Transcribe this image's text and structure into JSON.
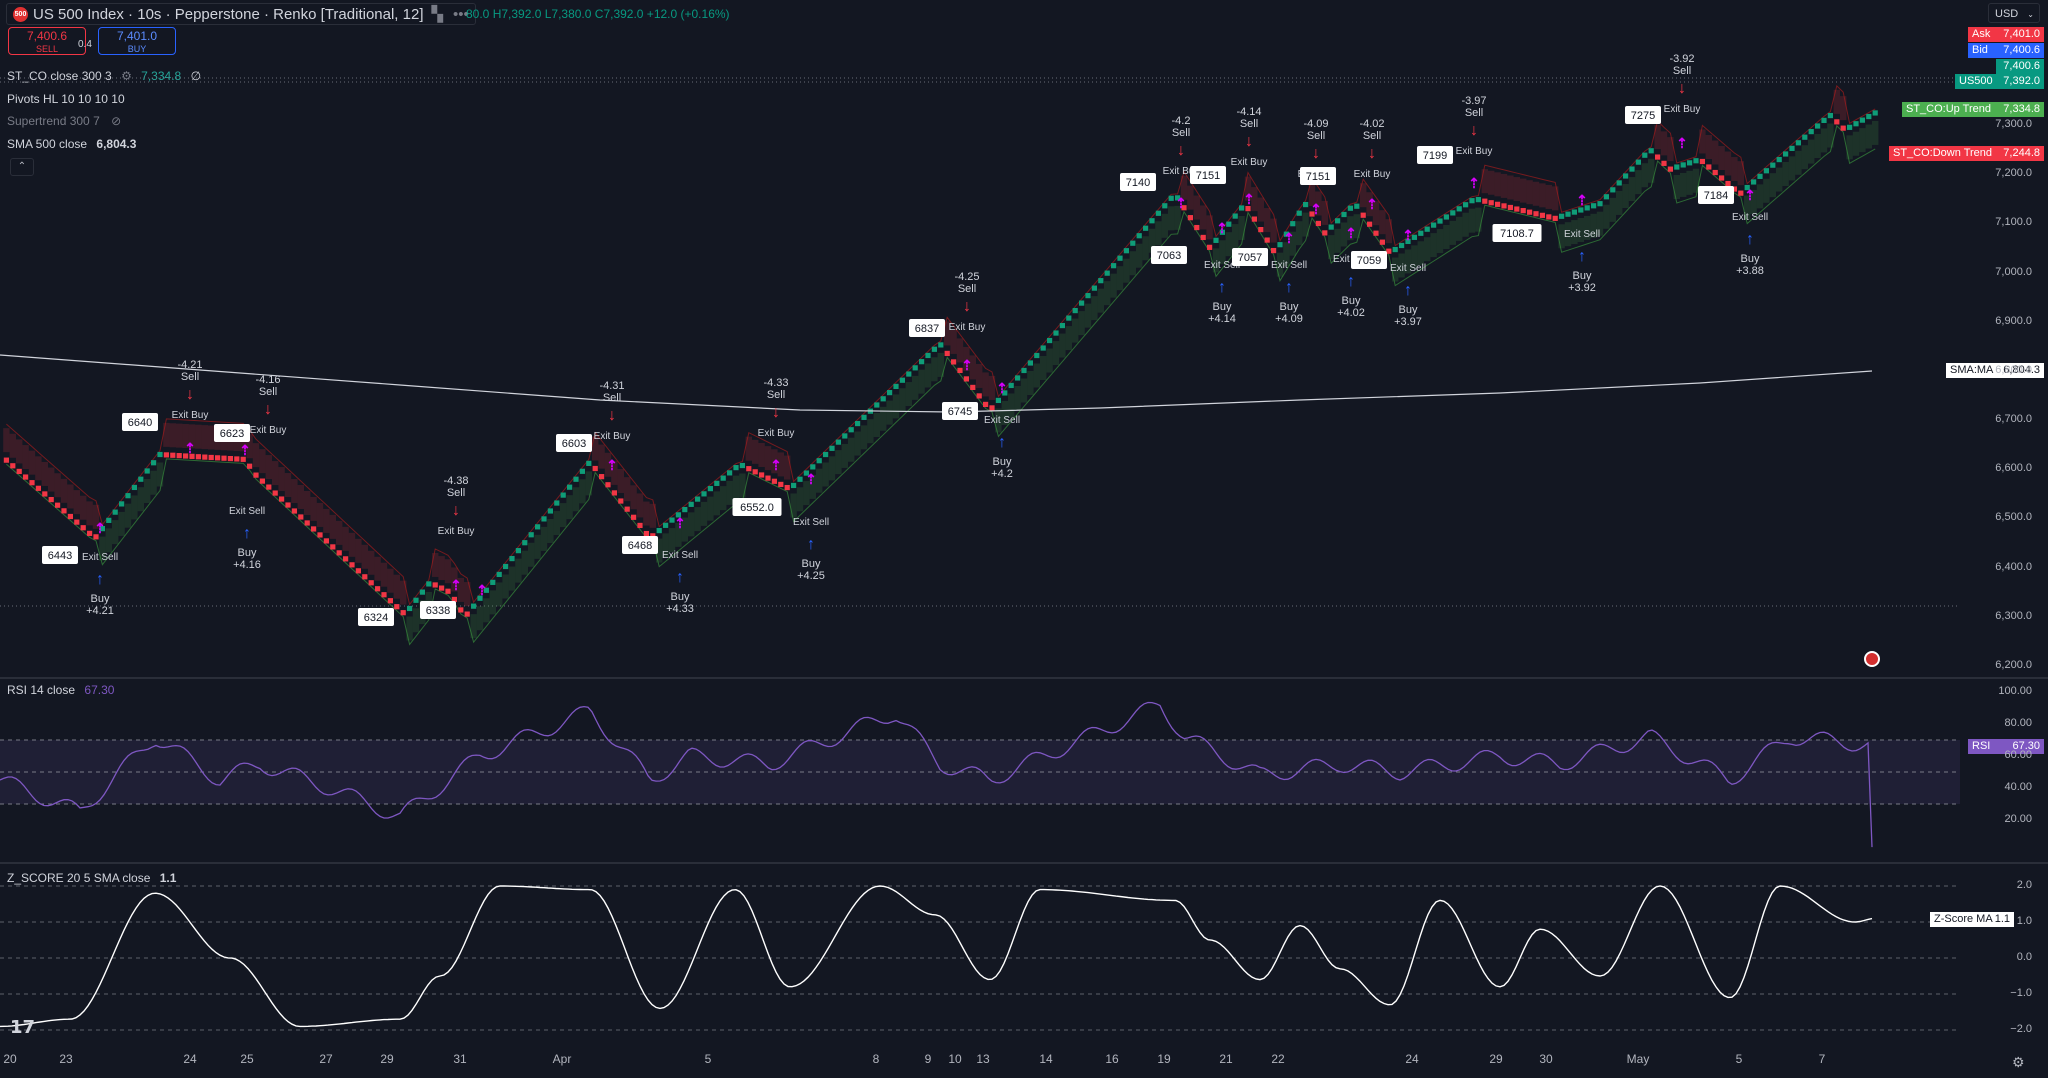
{
  "header": {
    "symbol_title": "US 500 Index · 10s · Pepperstone · Renko [Traditional, 12]",
    "logo_text": "500",
    "ohlc": "80.0 H7,392.0 L7,380.0 C7,392.0 +12.0 (+0.16%)",
    "currency": "USD"
  },
  "trade": {
    "sell_price": "7,400.6",
    "sell_label": "SELL",
    "spread": "0.4",
    "buy_price": "7,401.0",
    "buy_label": "BUY"
  },
  "legend": {
    "st_co_name": "ST_CO close 300 3",
    "st_co_value": "7,334.8",
    "st_co_extra": "∅",
    "pivots_name": "Pivots HL 10 10 10 10",
    "supertrend_name": "Supertrend 300 7",
    "sma_name": "SMA 500 close",
    "sma_value": "6,804.3"
  },
  "rsi_legend": {
    "name": "RSI 14 close",
    "value": "67.30"
  },
  "zscore_legend": {
    "name": "Z_SCORE 20 5 SMA close",
    "value": "1.1"
  },
  "price_labels": {
    "ask_label": "Ask",
    "ask_value": "7,401.0",
    "bid_label": "Bid",
    "bid_value": "7,400.6",
    "high_value": "7,400.6",
    "us500_label": "US500",
    "us500_value": "7,392.0",
    "up_trend_label": "ST_CO:Up Trend",
    "up_trend_value": "7,334.8",
    "down_trend_label": "ST_CO:Down Trend",
    "down_trend_value": "7,244.8",
    "sma_label": "SMA:MA",
    "sma_value": "6,804.3",
    "rsi_label": "RSI",
    "rsi_value": "67.30",
    "z_label": "Z-Score MA",
    "z_value": "1.1"
  },
  "price_axis": [
    "7,300.0",
    "7,200.0",
    "7,100.0",
    "7,000.0",
    "6,900.0",
    "6,800.0",
    "6,700.0",
    "6,600.0",
    "6,500.0",
    "6,400.0",
    "6,300.0",
    "6,200.0"
  ],
  "rsi_axis": [
    "100.00",
    "80.00",
    "60.00",
    "40.00",
    "20.00"
  ],
  "z_axis": [
    "2.0",
    "1.0",
    "0.0",
    "−1.0",
    "−2.0"
  ],
  "date_axis": [
    "20",
    "23",
    "24",
    "25",
    "27",
    "29",
    "31",
    "Apr",
    "5",
    "8",
    "9",
    "10",
    "13",
    "14",
    "16",
    "19",
    "21",
    "22",
    "24",
    "29",
    "30",
    "May",
    "5",
    "7"
  ],
  "signals": {
    "sell_text": "Sell",
    "buy_text": "Buy",
    "exit_buy_text": "Exit Buy",
    "exit_sell_text": "Exit Sell",
    "sells": [
      {
        "amt": "-4.21"
      },
      {
        "amt": "-4.16"
      },
      {
        "amt": "-4.38"
      },
      {
        "amt": "-4.31"
      },
      {
        "amt": "-4.33"
      },
      {
        "amt": "-4.25"
      },
      {
        "amt": "-4.2"
      },
      {
        "amt": "-4.14"
      },
      {
        "amt": "-4.09"
      },
      {
        "amt": "-4.02"
      },
      {
        "amt": "-3.97"
      },
      {
        "amt": "-3.92"
      }
    ],
    "buys": [
      {
        "amt": "+4.21"
      },
      {
        "amt": "+4.16"
      },
      {
        "amt": "+4.33"
      },
      {
        "amt": "+4.25"
      },
      {
        "amt": "+4.2"
      },
      {
        "amt": "+4.14"
      },
      {
        "amt": "+4.09"
      },
      {
        "amt": "+4.02"
      },
      {
        "amt": "+3.97"
      },
      {
        "amt": "+3.92"
      },
      {
        "amt": "+3.88"
      }
    ],
    "pivot_labels": [
      "6640",
      "6623",
      "6443",
      "6324",
      "6338",
      "6603",
      "6468",
      "6552.0",
      "6837",
      "6745",
      "7140",
      "7151",
      "7063",
      "7057",
      "7151",
      "7059",
      "7199",
      "7108.7",
      "7275",
      "7184"
    ]
  }
}
